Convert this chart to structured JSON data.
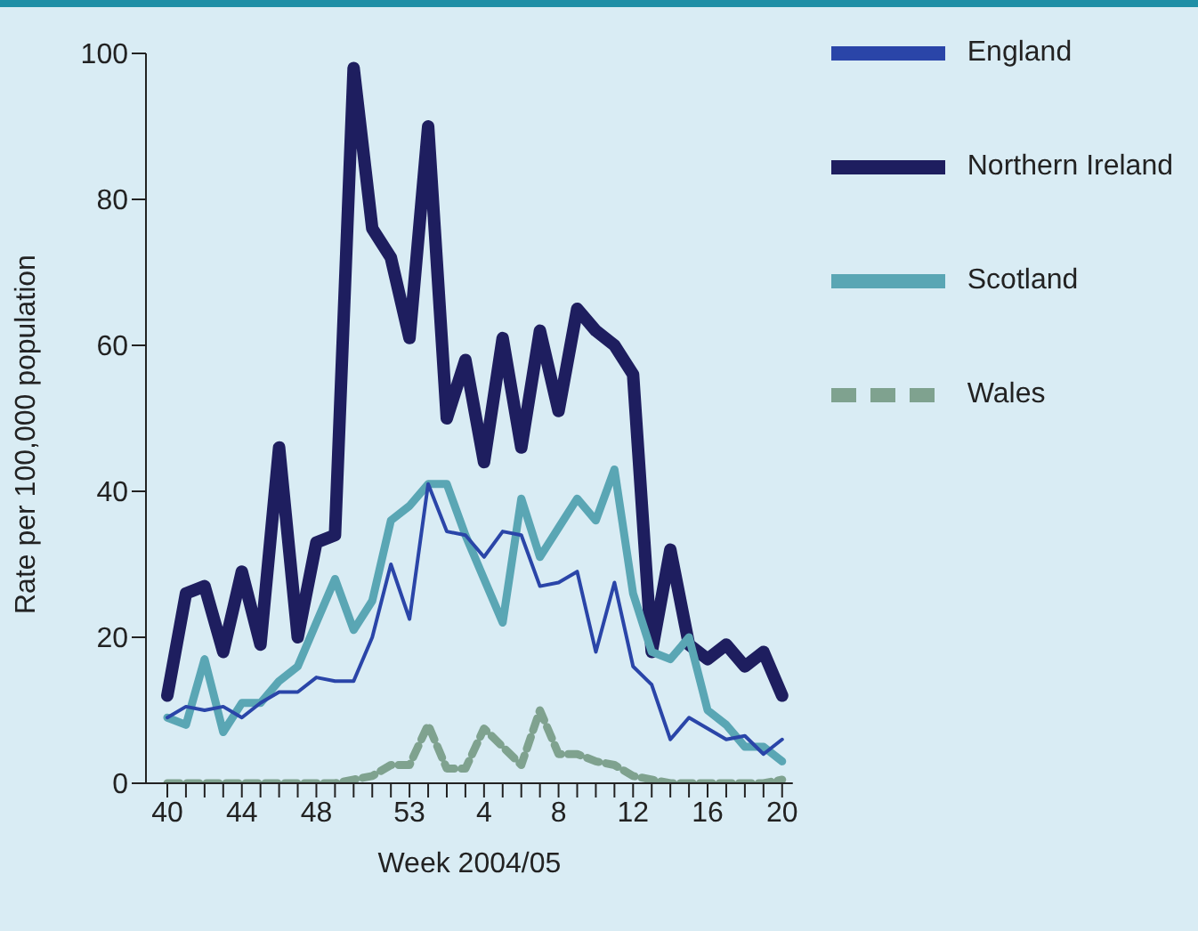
{
  "chart_data": {
    "type": "line",
    "xlabel": "Week 2004/05",
    "ylabel": "Rate per 100,000 population",
    "categories": [
      "40",
      null,
      null,
      null,
      "44",
      null,
      null,
      null,
      "48",
      null,
      null,
      null,
      null,
      "53",
      null,
      null,
      null,
      "4",
      null,
      null,
      null,
      "8",
      null,
      null,
      null,
      "12",
      null,
      null,
      null,
      "16",
      null,
      null,
      null,
      "20"
    ],
    "series": [
      {
        "name": "Northern Ireland",
        "color": "#1e1e5f",
        "values": [
          12,
          26,
          27,
          18,
          29,
          19,
          46,
          20,
          33,
          34,
          98,
          76,
          72,
          61,
          90,
          50,
          58,
          44,
          61,
          46,
          62,
          51,
          65,
          62,
          60,
          56,
          18,
          32,
          19,
          17,
          19,
          16,
          18,
          12
        ]
      },
      {
        "name": "Scotland",
        "color": "#5aa6b4",
        "values": [
          9,
          8,
          17,
          7,
          11,
          11,
          14,
          16,
          22,
          28,
          21,
          25,
          36,
          38,
          41,
          41,
          34,
          28,
          22,
          39,
          31,
          35,
          39,
          36,
          43,
          26,
          18,
          17,
          20,
          10,
          8,
          5,
          5,
          3
        ]
      },
      {
        "name": "England",
        "color": "#2a45a8",
        "values": [
          9,
          10.5,
          10,
          10.5,
          9,
          11,
          12.5,
          12.5,
          14.5,
          14,
          14,
          20,
          30,
          22.5,
          41,
          34.5,
          34,
          31,
          34.5,
          34,
          27,
          27.5,
          29,
          18,
          27.5,
          16,
          13.5,
          6,
          9,
          7.5,
          6,
          6.5,
          4,
          6
        ]
      },
      {
        "name": "Wales",
        "color": "#7fa28f",
        "line_style": "dashed",
        "values": [
          0,
          0,
          0,
          0,
          0,
          0,
          0,
          0,
          0,
          0,
          0.5,
          1,
          2.5,
          2.5,
          8,
          2,
          2,
          7.5,
          5,
          2.5,
          10,
          4,
          4,
          3,
          2.5,
          1,
          0.5,
          0,
          0,
          0,
          0,
          0,
          0,
          0.5
        ]
      }
    ],
    "ylim": [
      0,
      100
    ],
    "yticks": [
      0,
      20,
      40,
      60,
      80,
      100
    ],
    "grid": false,
    "legend": "top right",
    "marker": "none",
    "line_style": "solid"
  }
}
